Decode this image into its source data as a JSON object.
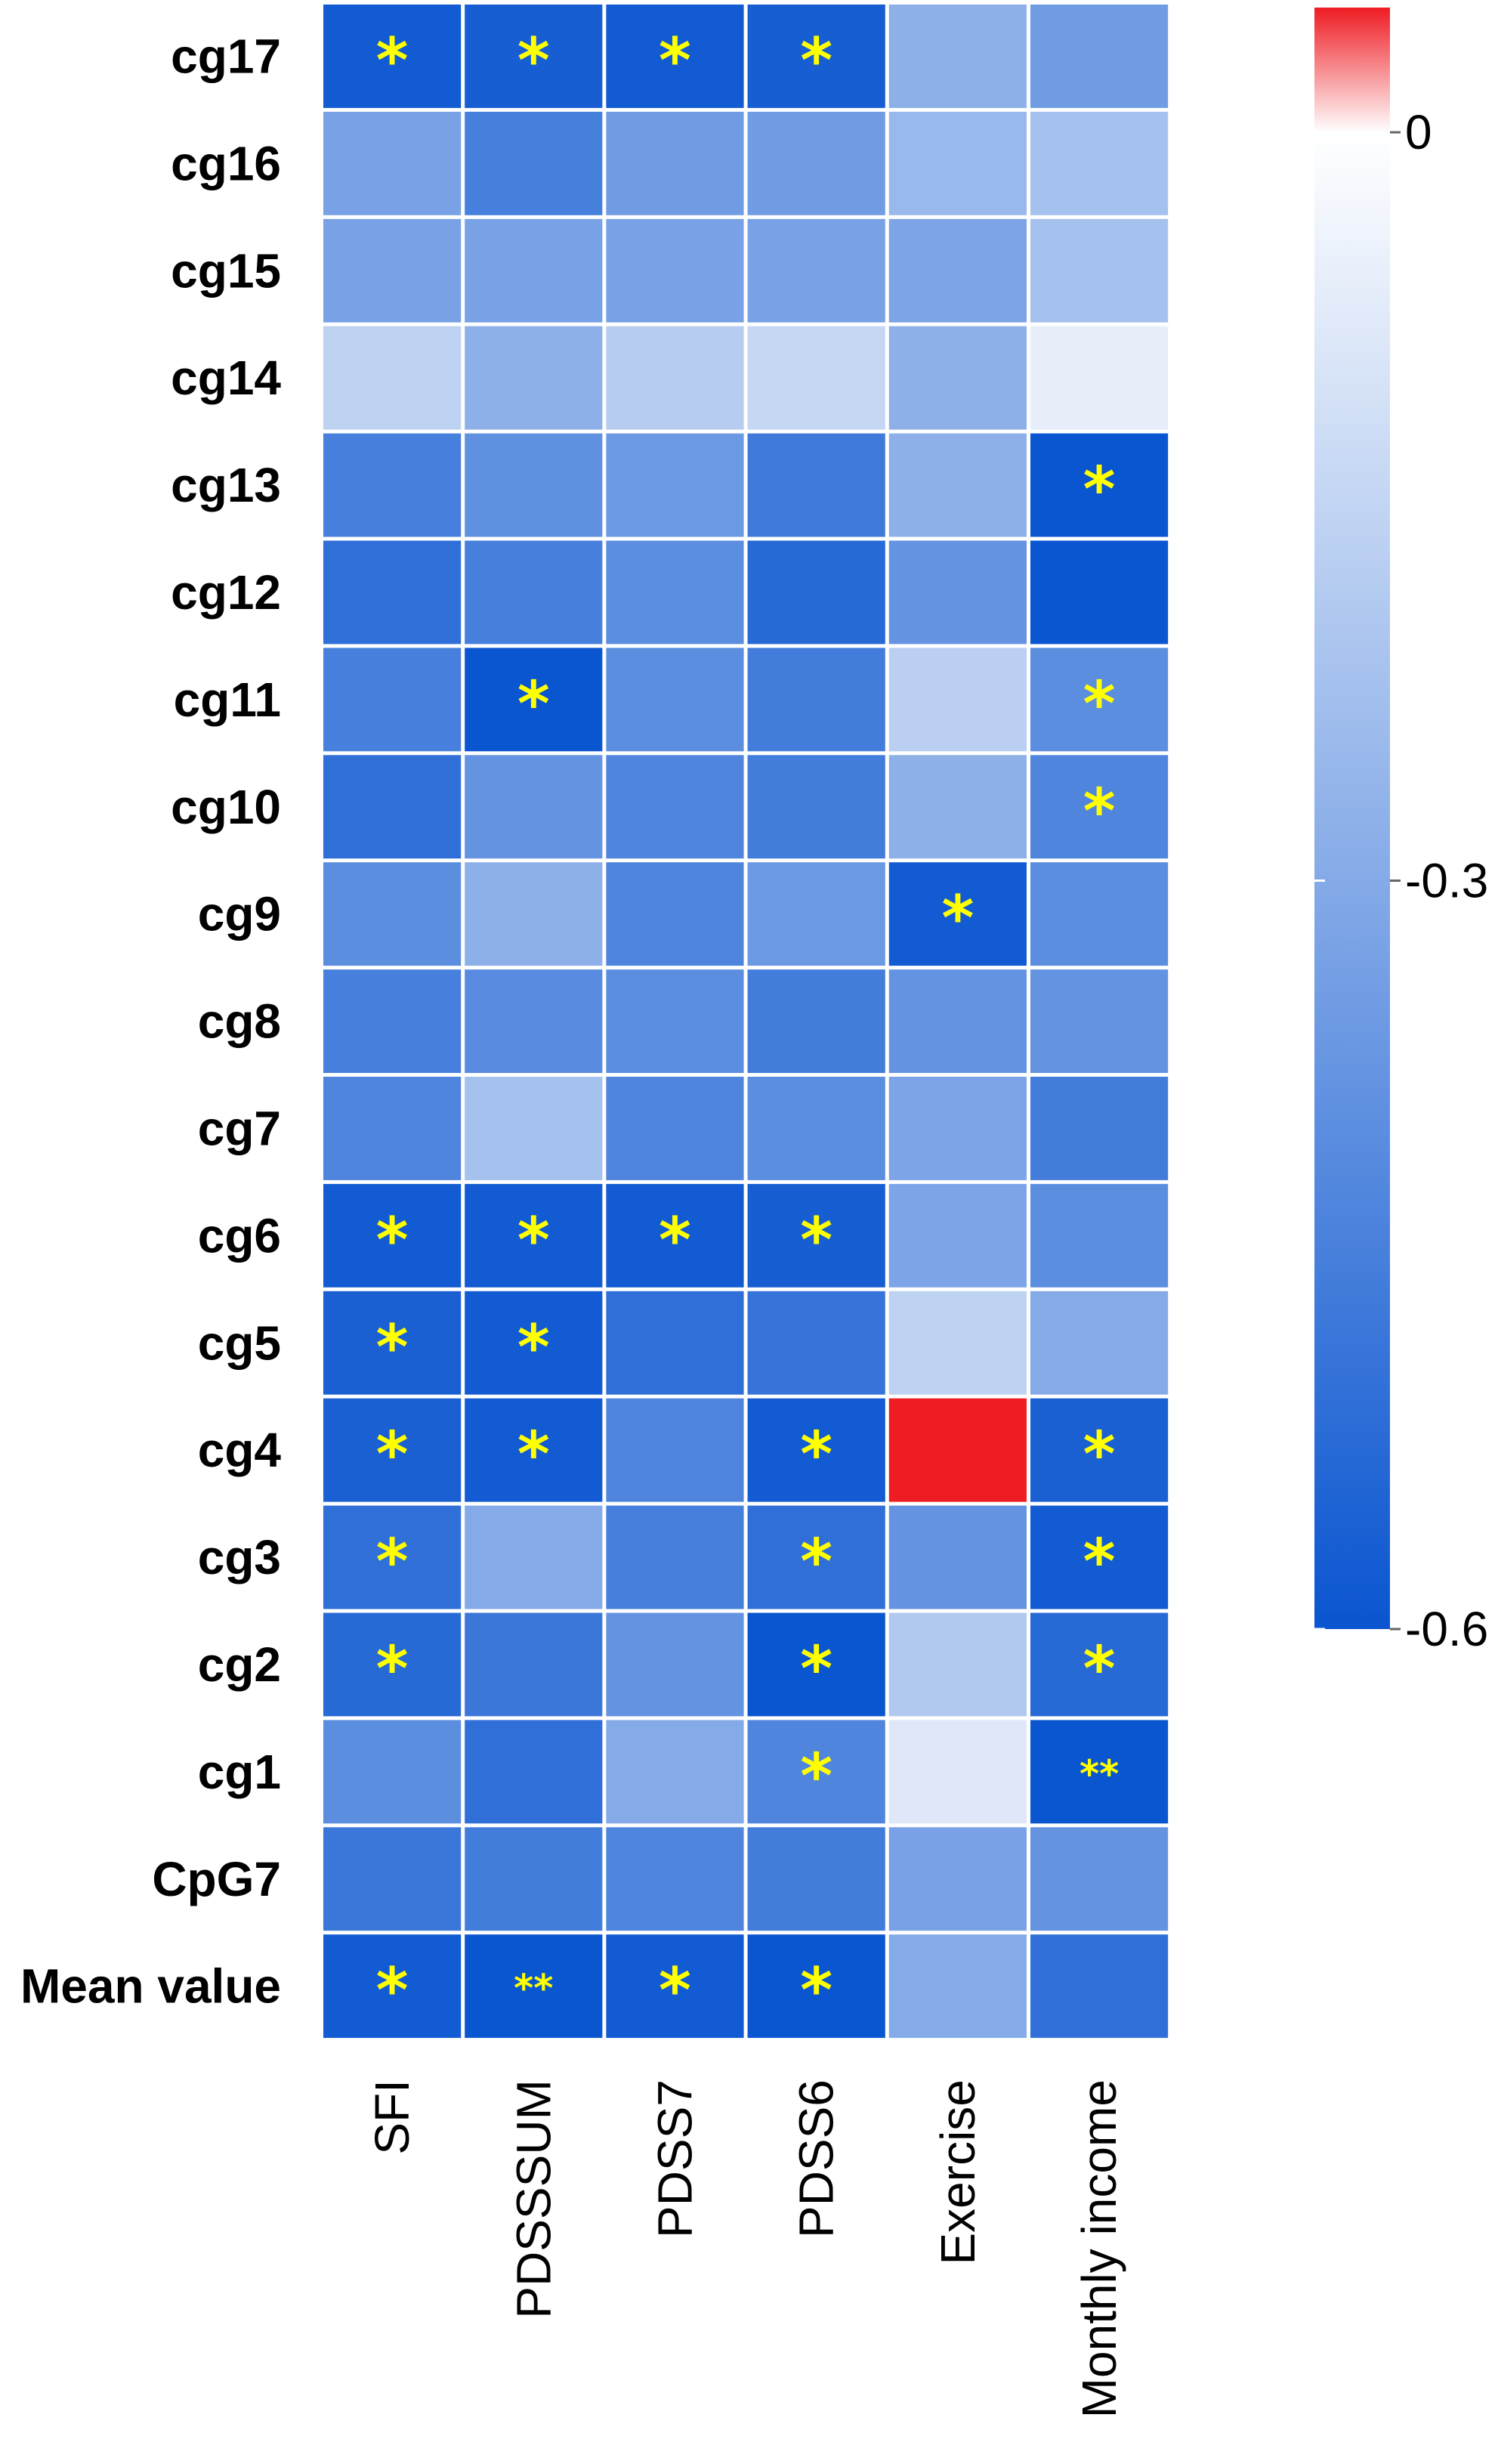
{
  "chart_data": {
    "type": "heatmap",
    "title": "",
    "xlabel": "",
    "ylabel": "",
    "rows": [
      "cg17",
      "cg16",
      "cg15",
      "cg14",
      "cg13",
      "cg12",
      "cg11",
      "cg10",
      "cg9",
      "cg8",
      "cg7",
      "cg6",
      "cg5",
      "cg4",
      "cg3",
      "cg2",
      "cg1",
      "CpG7",
      "Mean value"
    ],
    "columns": [
      "SFI",
      "PDSSSUM",
      "PDSS7",
      "PDSS6",
      "Exercise",
      "Monthly income"
    ],
    "values": [
      [
        -0.58,
        -0.57,
        -0.58,
        -0.57,
        -0.28,
        -0.35
      ],
      [
        -0.33,
        -0.45,
        -0.35,
        -0.35,
        -0.25,
        -0.22
      ],
      [
        -0.33,
        -0.33,
        -0.33,
        -0.33,
        -0.32,
        -0.22
      ],
      [
        -0.16,
        -0.28,
        -0.18,
        -0.14,
        -0.28,
        -0.06
      ],
      [
        -0.45,
        -0.39,
        -0.36,
        -0.47,
        -0.28,
        -0.61
      ],
      [
        -0.51,
        -0.45,
        -0.4,
        -0.53,
        -0.38,
        -0.62
      ],
      [
        -0.45,
        -0.6,
        -0.4,
        -0.46,
        -0.17,
        -0.4
      ],
      [
        -0.51,
        -0.38,
        -0.43,
        -0.46,
        -0.28,
        -0.43
      ],
      [
        -0.4,
        -0.28,
        -0.43,
        -0.36,
        -0.58,
        -0.4
      ],
      [
        -0.45,
        -0.41,
        -0.4,
        -0.46,
        -0.38,
        -0.38
      ],
      [
        -0.43,
        -0.22,
        -0.43,
        -0.4,
        -0.32,
        -0.46
      ],
      [
        -0.58,
        -0.58,
        -0.58,
        -0.57,
        -0.32,
        -0.4
      ],
      [
        -0.56,
        -0.58,
        -0.51,
        -0.49,
        -0.16,
        -0.3
      ],
      [
        -0.56,
        -0.58,
        -0.43,
        -0.58,
        0.05,
        -0.56
      ],
      [
        -0.51,
        -0.3,
        -0.45,
        -0.51,
        -0.38,
        -0.58
      ],
      [
        -0.53,
        -0.48,
        -0.38,
        -0.66,
        -0.19,
        -0.53
      ],
      [
        -0.4,
        -0.51,
        -0.3,
        -0.43,
        -0.08,
        -0.64
      ],
      [
        -0.48,
        -0.46,
        -0.43,
        -0.46,
        -0.33,
        -0.38
      ],
      [
        -0.58,
        -0.62,
        -0.58,
        -0.6,
        -0.3,
        -0.51
      ]
    ],
    "significance": [
      [
        "*",
        "*",
        "*",
        "*",
        "",
        ""
      ],
      [
        "",
        "",
        "",
        "",
        "",
        ""
      ],
      [
        "",
        "",
        "",
        "",
        "",
        ""
      ],
      [
        "",
        "",
        "",
        "",
        "",
        ""
      ],
      [
        "",
        "",
        "",
        "",
        "",
        "*"
      ],
      [
        "",
        "",
        "",
        "",
        "",
        ""
      ],
      [
        "",
        "*",
        "",
        "",
        "",
        "*"
      ],
      [
        "",
        "",
        "",
        "",
        "",
        "*"
      ],
      [
        "",
        "",
        "",
        "",
        "*",
        ""
      ],
      [
        "",
        "",
        "",
        "",
        "",
        ""
      ],
      [
        "",
        "",
        "",
        "",
        "",
        ""
      ],
      [
        "*",
        "*",
        "*",
        "*",
        "",
        ""
      ],
      [
        "*",
        "*",
        "",
        "",
        "",
        ""
      ],
      [
        "*",
        "*",
        "",
        "*",
        "",
        "*"
      ],
      [
        "*",
        "",
        "",
        "*",
        "",
        "*"
      ],
      [
        "*",
        "",
        "",
        "*",
        "",
        "*"
      ],
      [
        "",
        "",
        "",
        "*",
        "",
        "**"
      ],
      [
        "",
        "",
        "",
        "",
        "",
        ""
      ],
      [
        "*",
        "**",
        "*",
        "*",
        "",
        ""
      ]
    ],
    "colorbar": {
      "min": -0.6,
      "max": 0.05,
      "ticks": [
        0,
        -0.3,
        -0.6
      ],
      "tick_labels": [
        "0",
        "-0.3",
        "-0.6"
      ],
      "low_color": "#0a55d0",
      "mid_color": "#ffffff",
      "high_color": "#ee1c23"
    },
    "legend": "right"
  }
}
